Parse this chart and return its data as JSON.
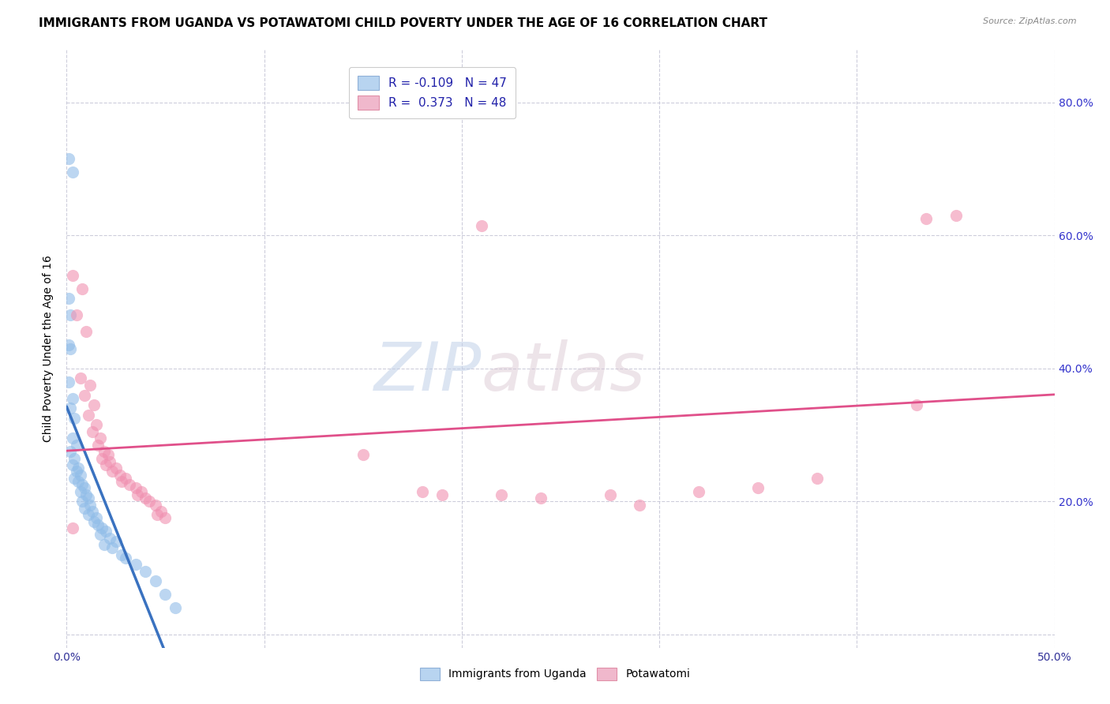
{
  "title": "IMMIGRANTS FROM UGANDA VS POTAWATOMI CHILD POVERTY UNDER THE AGE OF 16 CORRELATION CHART",
  "source": "Source: ZipAtlas.com",
  "ylabel": "Child Poverty Under the Age of 16",
  "xlim": [
    0.0,
    0.5
  ],
  "ylim": [
    -0.02,
    0.88
  ],
  "x_ticks": [
    0.0,
    0.1,
    0.2,
    0.3,
    0.4,
    0.5
  ],
  "x_tick_labels_show": [
    "0.0%",
    "",
    "",
    "",
    "",
    "50.0%"
  ],
  "y_ticks": [
    0.0,
    0.2,
    0.4,
    0.6,
    0.8
  ],
  "y_tick_labels_right": [
    "",
    "20.0%",
    "40.0%",
    "60.0%",
    "80.0%"
  ],
  "uganda_color": "#90bce8",
  "potawatomi_color": "#f090b0",
  "uganda_line_color": "#3a72c0",
  "potawatomi_line_color": "#e0508a",
  "uganda_line_dash_color": "#a0b8d8",
  "uganda_R": -0.109,
  "uganda_N": 47,
  "potawatomi_R": 0.373,
  "potawatomi_N": 48,
  "uganda_points": [
    [
      0.001,
      0.715
    ],
    [
      0.003,
      0.695
    ],
    [
      0.001,
      0.505
    ],
    [
      0.002,
      0.48
    ],
    [
      0.001,
      0.435
    ],
    [
      0.002,
      0.43
    ],
    [
      0.001,
      0.38
    ],
    [
      0.003,
      0.355
    ],
    [
      0.002,
      0.34
    ],
    [
      0.004,
      0.325
    ],
    [
      0.003,
      0.295
    ],
    [
      0.005,
      0.285
    ],
    [
      0.002,
      0.275
    ],
    [
      0.004,
      0.265
    ],
    [
      0.003,
      0.255
    ],
    [
      0.006,
      0.25
    ],
    [
      0.005,
      0.245
    ],
    [
      0.007,
      0.24
    ],
    [
      0.004,
      0.235
    ],
    [
      0.006,
      0.23
    ],
    [
      0.008,
      0.225
    ],
    [
      0.009,
      0.22
    ],
    [
      0.007,
      0.215
    ],
    [
      0.01,
      0.21
    ],
    [
      0.011,
      0.205
    ],
    [
      0.008,
      0.2
    ],
    [
      0.012,
      0.195
    ],
    [
      0.009,
      0.19
    ],
    [
      0.013,
      0.185
    ],
    [
      0.011,
      0.18
    ],
    [
      0.015,
      0.175
    ],
    [
      0.014,
      0.17
    ],
    [
      0.016,
      0.165
    ],
    [
      0.018,
      0.16
    ],
    [
      0.02,
      0.155
    ],
    [
      0.017,
      0.15
    ],
    [
      0.022,
      0.145
    ],
    [
      0.025,
      0.14
    ],
    [
      0.019,
      0.135
    ],
    [
      0.023,
      0.13
    ],
    [
      0.028,
      0.12
    ],
    [
      0.03,
      0.115
    ],
    [
      0.035,
      0.105
    ],
    [
      0.04,
      0.095
    ],
    [
      0.045,
      0.08
    ],
    [
      0.05,
      0.06
    ],
    [
      0.055,
      0.04
    ]
  ],
  "potawatomi_points": [
    [
      0.003,
      0.54
    ],
    [
      0.008,
      0.52
    ],
    [
      0.005,
      0.48
    ],
    [
      0.01,
      0.455
    ],
    [
      0.007,
      0.385
    ],
    [
      0.012,
      0.375
    ],
    [
      0.009,
      0.36
    ],
    [
      0.014,
      0.345
    ],
    [
      0.011,
      0.33
    ],
    [
      0.015,
      0.315
    ],
    [
      0.013,
      0.305
    ],
    [
      0.017,
      0.295
    ],
    [
      0.016,
      0.285
    ],
    [
      0.019,
      0.275
    ],
    [
      0.021,
      0.27
    ],
    [
      0.018,
      0.265
    ],
    [
      0.022,
      0.26
    ],
    [
      0.02,
      0.255
    ],
    [
      0.025,
      0.25
    ],
    [
      0.023,
      0.245
    ],
    [
      0.027,
      0.24
    ],
    [
      0.03,
      0.235
    ],
    [
      0.028,
      0.23
    ],
    [
      0.032,
      0.225
    ],
    [
      0.035,
      0.22
    ],
    [
      0.038,
      0.215
    ],
    [
      0.036,
      0.21
    ],
    [
      0.04,
      0.205
    ],
    [
      0.042,
      0.2
    ],
    [
      0.045,
      0.195
    ],
    [
      0.048,
      0.185
    ],
    [
      0.046,
      0.18
    ],
    [
      0.05,
      0.175
    ],
    [
      0.003,
      0.16
    ],
    [
      0.15,
      0.27
    ],
    [
      0.18,
      0.215
    ],
    [
      0.19,
      0.21
    ],
    [
      0.22,
      0.21
    ],
    [
      0.24,
      0.205
    ],
    [
      0.275,
      0.21
    ],
    [
      0.29,
      0.195
    ],
    [
      0.32,
      0.215
    ],
    [
      0.35,
      0.22
    ],
    [
      0.38,
      0.235
    ],
    [
      0.43,
      0.345
    ],
    [
      0.435,
      0.625
    ],
    [
      0.45,
      0.63
    ],
    [
      0.21,
      0.615
    ]
  ],
  "background_color": "#ffffff",
  "grid_color": "#c8c8d8",
  "title_fontsize": 11,
  "axis_label_fontsize": 10,
  "tick_fontsize": 10
}
